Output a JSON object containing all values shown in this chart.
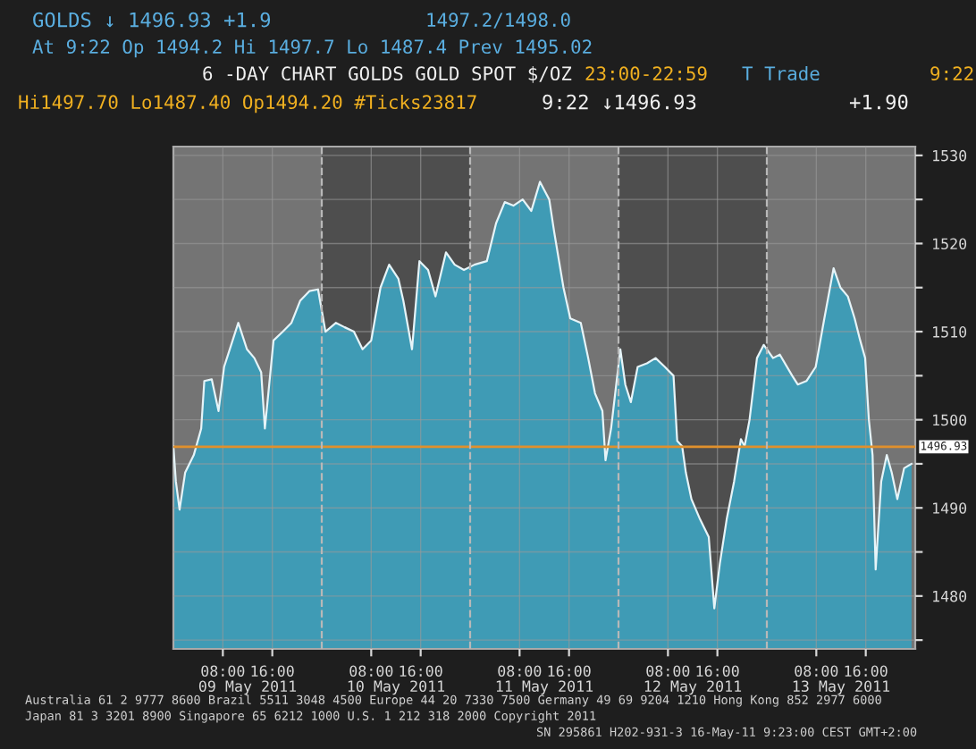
{
  "chart_data": {
    "type": "area",
    "title": "6 -DAY CHART GOLDS GOLD SPOT $/OZ",
    "annotations": [
      "GOLDS ↓ 1496.93 +1.9",
      "1497.2/1498.0",
      "At 9:22 Op 1494.2 Hi 1497.7 Lo 1487.4 Prev 1495.02",
      "23:00-22:59",
      "T Trade",
      "9:22",
      "Hi1497.70 Lo1487.40 Op1494.20 #Ticks23817",
      "9:22 ↓1496.93",
      "+1.90",
      "Australia 61 2 9777 8600 Brazil 5511 3048 4500 Europe 44 20 7330 7500 Germany 49 69 9204 1210 Hong Kong 852 2977 6000",
      "Japan 81 3 3201 8900 Singapore 65 6212 1000 U.S. 1 212 318 2000 Copyright 2011",
      "SN 295861 H202-931-3 16-May-11 9:23:00 CEST GMT+2:00"
    ],
    "x": [
      "2011-05-09T00:00",
      "2011-05-09T00:24",
      "2011-05-09T01:00",
      "2011-05-09T01:54",
      "2011-05-09T03:18",
      "2011-05-09T04:30",
      "2011-05-09T05:00",
      "2011-05-09T06:12",
      "2011-05-09T07:18",
      "2011-05-09T08:12",
      "2011-05-09T10:30",
      "2011-05-09T11:54",
      "2011-05-09T13:06",
      "2011-05-09T14:12",
      "2011-05-09T14:48",
      "2011-05-09T16:12",
      "2011-05-09T17:42",
      "2011-05-09T19:06",
      "2011-05-09T20:30",
      "2011-05-09T22:00",
      "2011-05-09T23:24",
      "2011-05-10T00:36",
      "2011-05-10T02:18",
      "2011-05-10T03:42",
      "2011-05-10T05:12",
      "2011-05-10T06:36",
      "2011-05-10T08:00",
      "2011-05-10T09:30",
      "2011-05-10T10:54",
      "2011-05-10T12:24",
      "2011-05-10T13:12",
      "2011-05-10T14:36",
      "2011-05-10T15:48",
      "2011-05-10T17:12",
      "2011-05-10T18:24",
      "2011-05-10T20:06",
      "2011-05-10T21:30",
      "2011-05-10T23:00",
      "2011-05-11T00:42",
      "2011-05-11T02:42",
      "2011-05-11T04:12",
      "2011-05-11T05:36",
      "2011-05-11T07:00",
      "2011-05-11T08:30",
      "2011-05-11T09:54",
      "2011-05-11T11:18",
      "2011-05-11T12:48",
      "2011-05-11T13:36",
      "2011-05-11T15:06",
      "2011-05-11T16:12",
      "2011-05-11T17:54",
      "2011-05-11T19:06",
      "2011-05-11T20:12",
      "2011-05-11T21:24",
      "2011-05-11T21:54",
      "2011-05-11T22:48",
      "2011-05-12T00:18",
      "2011-05-12T01:06",
      "2011-05-12T02:00",
      "2011-05-12T03:06",
      "2011-05-12T04:36",
      "2011-05-12T06:00",
      "2011-05-12T07:30",
      "2011-05-12T08:54",
      "2011-05-12T09:30",
      "2011-05-12T10:18",
      "2011-05-12T10:54",
      "2011-05-12T11:48",
      "2011-05-12T13:12",
      "2011-05-12T14:36",
      "2011-05-12T15:30",
      "2011-05-12T16:24",
      "2011-05-12T17:30",
      "2011-05-12T18:42",
      "2011-05-12T19:48",
      "2011-05-12T20:24",
      "2011-05-12T21:12",
      "2011-05-12T22:24",
      "2011-05-12T23:30",
      "2011-05-13T01:00",
      "2011-05-13T02:06",
      "2011-05-13T04:06",
      "2011-05-13T05:00",
      "2011-05-13T06:24",
      "2011-05-13T07:54",
      "2011-05-13T09:18",
      "2011-05-13T10:48",
      "2011-05-13T11:54",
      "2011-05-13T13:06",
      "2011-05-13T14:12",
      "2011-05-13T15:06",
      "2011-05-13T15:54",
      "2011-05-13T16:30",
      "2011-05-13T17:06",
      "2011-05-13T17:36",
      "2011-05-13T18:30",
      "2011-05-13T19:24",
      "2011-05-13T20:12",
      "2011-05-13T21:06",
      "2011-05-13T22:12",
      "2011-05-13T23:24"
    ],
    "series": [
      {
        "color": "#3f9bb5",
        "values": [
          1497,
          1493,
          1489.8,
          1494,
          1496,
          1499,
          1504.4,
          1504.6,
          1501,
          1506,
          1511,
          1508,
          1507,
          1505.4,
          1499,
          1509,
          1510,
          1511,
          1513.5,
          1514.6,
          1514.8,
          1510,
          1511,
          1510.5,
          1510,
          1508,
          1509,
          1515,
          1517.6,
          1516,
          1513.5,
          1508,
          1518,
          1517,
          1514,
          1519,
          1517.6,
          1517,
          1517.6,
          1518,
          1522.3,
          1524.7,
          1524.3,
          1525,
          1523.7,
          1527,
          1525,
          1521.3,
          1515,
          1511.5,
          1511,
          1507,
          1503,
          1501,
          1495.4,
          1499,
          1508,
          1504,
          1502,
          1506,
          1506.4,
          1507,
          1506,
          1505,
          1497.6,
          1497,
          1494,
          1491,
          1488.7,
          1486.7,
          1478.6,
          1483.7,
          1488.7,
          1493,
          1497.8,
          1497,
          1500,
          1507,
          1508.5,
          1507,
          1507.4,
          1505,
          1504,
          1504.4,
          1506,
          1511.5,
          1517.2,
          1515,
          1514,
          1511.5,
          1509,
          1507,
          1500,
          1496,
          1483,
          1493,
          1496,
          1494,
          1491,
          1494.5,
          1495
        ]
      }
    ],
    "xlim": [
      "2011-05-09T00:00",
      "2011-05-14T00:00"
    ],
    "ylim": [
      1474,
      1531
    ],
    "xticks": [
      {
        "value": "2011-05-09T08:00",
        "label": "08:00"
      },
      {
        "value": "2011-05-09T16:00",
        "label": "16:00"
      },
      {
        "value": "2011-05-10T08:00",
        "label": "08:00"
      },
      {
        "value": "2011-05-10T16:00",
        "label": "16:00"
      },
      {
        "value": "2011-05-11T08:00",
        "label": "08:00"
      },
      {
        "value": "2011-05-11T16:00",
        "label": "16:00"
      },
      {
        "value": "2011-05-12T08:00",
        "label": "08:00"
      },
      {
        "value": "2011-05-12T16:00",
        "label": "16:00"
      },
      {
        "value": "2011-05-13T08:00",
        "label": "08:00"
      },
      {
        "value": "2011-05-13T16:00",
        "label": "16:00"
      }
    ],
    "x2lim": [
      "2011-05-09T00:00",
      "2011-05-14T00:00"
    ],
    "x2ticks": [
      {
        "value": "2011-05-09T12:00",
        "label": "09 May 2011"
      },
      {
        "value": "2011-05-10T12:00",
        "label": "10 May 2011"
      },
      {
        "value": "2011-05-11T12:00",
        "label": "11 May 2011"
      },
      {
        "value": "2011-05-12T12:00",
        "label": "12 May 2011"
      },
      {
        "value": "2011-05-13T12:00",
        "label": "13 May 2011"
      }
    ],
    "yticks": [
      {
        "value": 1475,
        "label": null
      },
      1480,
      {
        "value": 1485,
        "label": null
      },
      1490,
      {
        "value": 1495,
        "label": null
      },
      1500,
      {
        "value": 1505,
        "label": null
      },
      1510,
      {
        "value": 1515,
        "label": null
      },
      1520,
      {
        "value": 1525,
        "label": null
      },
      1530
    ],
    "ref_lines": [
      {
        "axis": "y",
        "value": 1496.93,
        "label": "1496.93",
        "color": "#e0902c"
      },
      {
        "axis": "x",
        "value": "2011-05-10",
        "line_style": "dashed",
        "color": "#b8b8b8"
      },
      {
        "axis": "x",
        "value": "2011-05-11",
        "line_style": "dashed",
        "color": "#b8b8b8"
      },
      {
        "axis": "x",
        "value": "2011-05-12",
        "line_style": "dashed",
        "color": "#b8b8b8"
      },
      {
        "axis": "x",
        "value": "2011-05-13",
        "line_style": "dashed",
        "color": "#b8b8b8"
      }
    ],
    "bands": [
      {
        "axis": "x",
        "from": "2011-05-10",
        "to": "2011-05-11",
        "color": "#4e4e4e"
      },
      {
        "axis": "x",
        "from": "2011-05-12",
        "to": "2011-05-13",
        "color": "#4e4e4e"
      }
    ],
    "grid": true
  }
}
